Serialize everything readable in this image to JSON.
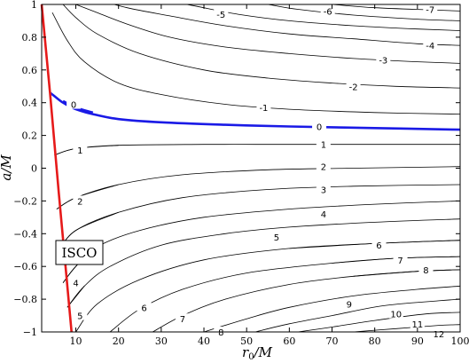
{
  "chart_data": {
    "type": "line",
    "xlabel_var": "r",
    "xlabel_sub": "0",
    "xlabel_rest": "/M",
    "ylabel": "a/M",
    "xlim": [
      2,
      100
    ],
    "ylim": [
      -1,
      1
    ],
    "xticks": [
      "10",
      "20",
      "30",
      "40",
      "50",
      "60",
      "70",
      "80",
      "90",
      "100"
    ],
    "yticks": [
      "1",
      "0.8",
      "0.6",
      "0.4",
      "0.2",
      "0",
      "-0.2",
      "-0.4",
      "-0.6",
      "-0.8",
      "-1"
    ],
    "grid": false,
    "isco_label": "ISCO",
    "colors": {
      "contour": "#000000",
      "zero_contour": "#1a1ae6",
      "isco": "#e61a1a"
    },
    "isco": {
      "x": [
        2.0,
        4.0,
        6.0,
        9.0
      ],
      "y": [
        1.0,
        0.45,
        -0.15,
        -1.0
      ]
    },
    "series": [
      {
        "label": "-7",
        "x": [
          60,
          70,
          80,
          95,
          100
        ],
        "y": [
          1.02,
          1.0,
          0.98,
          0.965,
          0.96
        ],
        "label_at": {
          "x": 93,
          "y": 0.97
        }
      },
      {
        "label": "-6",
        "x": [
          48,
          55,
          62,
          75,
          90,
          100
        ],
        "y": [
          1.03,
          1.0,
          0.97,
          0.935,
          0.91,
          0.9
        ],
        "label_at": {
          "x": 69,
          "y": 0.96
        }
      },
      {
        "label": "-5",
        "x": [
          30,
          38,
          48,
          60,
          75,
          90,
          100
        ],
        "y": [
          1.03,
          0.99,
          0.94,
          0.9,
          0.87,
          0.85,
          0.84
        ],
        "label_at": {
          "x": 44,
          "y": 0.94
        }
      },
      {
        "label": "-4",
        "x": [
          15,
          22,
          32,
          45,
          60,
          75,
          90,
          100
        ],
        "y": [
          1.03,
          0.98,
          0.93,
          0.87,
          0.82,
          0.79,
          0.76,
          0.75
        ],
        "label_at": {
          "x": 93,
          "y": 0.75
        }
      },
      {
        "label": "-3",
        "x": [
          10,
          15,
          22,
          32,
          45,
          60,
          75,
          90,
          100
        ],
        "y": [
          1.0,
          0.95,
          0.88,
          0.8,
          0.74,
          0.7,
          0.67,
          0.65,
          0.64
        ],
        "label_at": {
          "x": 82,
          "y": 0.66
        }
      },
      {
        "label": "-2",
        "x": [
          7,
          10,
          15,
          25,
          40,
          55,
          70,
          85,
          100
        ],
        "y": [
          1.0,
          0.92,
          0.82,
          0.7,
          0.6,
          0.55,
          0.52,
          0.5,
          0.49
        ],
        "label_at": {
          "x": 75,
          "y": 0.5
        }
      },
      {
        "label": "-1",
        "x": [
          4.5,
          8,
          12,
          20,
          30,
          45,
          60,
          80,
          100
        ],
        "y": [
          0.95,
          0.78,
          0.65,
          0.52,
          0.45,
          0.39,
          0.36,
          0.34,
          0.33
        ],
        "label_at": {
          "x": 54,
          "y": 0.37
        }
      },
      {
        "label": "0",
        "x": [
          4.0,
          5,
          7,
          10,
          14,
          20,
          30,
          45,
          60,
          80,
          100
        ],
        "y": [
          0.46,
          0.44,
          0.4,
          0.36,
          0.33,
          0.3,
          0.28,
          0.265,
          0.255,
          0.245,
          0.235
        ],
        "label_at": {
          "x": 67,
          "y": 0.255
        }
      },
      {
        "label": "0",
        "x": [
          7,
          10,
          14
        ],
        "y": [
          0.41,
          0.37,
          0.34
        ],
        "label_at": {
          "x": 9.5,
          "y": 0.39
        }
      },
      {
        "label": "1",
        "x": [
          5,
          10,
          20,
          40,
          60,
          80,
          100
        ],
        "y": [
          0.08,
          0.12,
          0.14,
          0.145,
          0.145,
          0.145,
          0.145
        ],
        "label_at": {
          "x": 68,
          "y": 0.145
        }
      },
      {
        "label": "1",
        "x": [
          5,
          10,
          20
        ],
        "y": [
          0.08,
          0.12,
          0.14
        ],
        "label_at": {
          "x": 11,
          "y": 0.11
        }
      },
      {
        "label": "2",
        "x": [
          5.5,
          10,
          20,
          35,
          55,
          75,
          100
        ],
        "y": [
          -0.25,
          -0.18,
          -0.1,
          -0.04,
          -0.01,
          0.0,
          0.01
        ],
        "label_at": {
          "x": 68,
          "y": 0.01
        }
      },
      {
        "label": "2",
        "x": [
          5.5,
          10,
          20
        ],
        "y": [
          -0.25,
          -0.18,
          -0.1
        ],
        "label_at": {
          "x": 11,
          "y": -0.2
        }
      },
      {
        "label": "3",
        "x": [
          6,
          10,
          20,
          35,
          55,
          75,
          100
        ],
        "y": [
          -0.5,
          -0.38,
          -0.27,
          -0.18,
          -0.13,
          -0.11,
          -0.1
        ],
        "label_at": {
          "x": 68,
          "y": -0.13
        }
      },
      {
        "label": "3",
        "x": [
          6,
          10,
          20
        ],
        "y": [
          -0.5,
          -0.38,
          -0.27
        ],
        "label_at": {
          "x": 10,
          "y": -0.48
        }
      },
      {
        "label": "4",
        "x": [
          7,
          10,
          15,
          25,
          40,
          60,
          80,
          100
        ],
        "y": [
          -0.7,
          -0.6,
          -0.48,
          -0.38,
          -0.3,
          -0.25,
          -0.22,
          -0.2
        ],
        "label_at": {
          "x": 68,
          "y": -0.28
        }
      },
      {
        "label": "4",
        "x": [
          7,
          10,
          15
        ],
        "y": [
          -0.7,
          -0.6,
          -0.48
        ],
        "label_at": {
          "x": 10,
          "y": -0.7
        }
      },
      {
        "label": "5",
        "x": [
          8,
          12,
          18,
          30,
          45,
          60,
          80,
          100
        ],
        "y": [
          -0.85,
          -0.72,
          -0.6,
          -0.47,
          -0.4,
          -0.36,
          -0.33,
          -0.31
        ],
        "label_at": {
          "x": 57,
          "y": -0.42
        }
      },
      {
        "label": "5",
        "x": [
          8,
          12
        ],
        "y": [
          -0.85,
          -0.72
        ],
        "label_at": {
          "x": 11,
          "y": -0.9
        }
      },
      {
        "label": "6",
        "x": [
          10,
          15,
          25,
          40,
          60,
          80,
          100
        ],
        "y": [
          -1.0,
          -0.83,
          -0.68,
          -0.56,
          -0.49,
          -0.46,
          -0.44
        ],
        "label_at": {
          "x": 26,
          "y": -0.85
        }
      },
      {
        "label": "6",
        "x": [
          60,
          80,
          100
        ],
        "y": [
          -0.49,
          -0.46,
          -0.44
        ],
        "label_at": {
          "x": 81,
          "y": -0.47
        }
      },
      {
        "label": "7",
        "x": [
          18,
          25,
          35,
          50,
          70,
          85,
          100
        ],
        "y": [
          -1.0,
          -0.86,
          -0.74,
          -0.64,
          -0.58,
          -0.55,
          -0.54
        ],
        "label_at": {
          "x": 35,
          "y": -0.92
        }
      },
      {
        "label": "7",
        "x": [
          70,
          85,
          100
        ],
        "y": [
          -0.58,
          -0.55,
          -0.54
        ],
        "label_at": {
          "x": 86,
          "y": -0.56
        }
      },
      {
        "label": "8",
        "x": [
          28,
          35,
          45,
          60,
          75,
          90,
          100
        ],
        "y": [
          -1.0,
          -0.9,
          -0.8,
          -0.71,
          -0.66,
          -0.63,
          -0.62
        ],
        "label_at": {
          "x": 44,
          "y": -1.0
        }
      },
      {
        "label": "8",
        "x": [
          75,
          90,
          100
        ],
        "y": [
          -0.66,
          -0.63,
          -0.62
        ],
        "label_at": {
          "x": 92,
          "y": -0.62
        }
      },
      {
        "label": "9",
        "x": [
          40,
          50,
          60,
          75,
          90,
          100
        ],
        "y": [
          -1.0,
          -0.92,
          -0.85,
          -0.78,
          -0.74,
          -0.72
        ],
        "label_at": {
          "x": 74,
          "y": -0.83
        }
      },
      {
        "label": "10",
        "x": [
          52,
          60,
          70,
          82,
          95,
          100
        ],
        "y": [
          -1.0,
          -0.95,
          -0.9,
          -0.84,
          -0.81,
          -0.8
        ],
        "label_at": {
          "x": 85,
          "y": -0.89
        }
      },
      {
        "label": "11",
        "x": [
          62,
          70,
          80,
          92,
          100
        ],
        "y": [
          -1.0,
          -0.97,
          -0.93,
          -0.89,
          -0.88
        ],
        "label_at": {
          "x": 90,
          "y": -0.95
        }
      },
      {
        "label": "12",
        "x": [
          75,
          85,
          95,
          100
        ],
        "y": [
          -1.0,
          -0.98,
          -0.96,
          -0.955
        ],
        "label_at": {
          "x": 95,
          "y": -1.01
        }
      }
    ]
  }
}
